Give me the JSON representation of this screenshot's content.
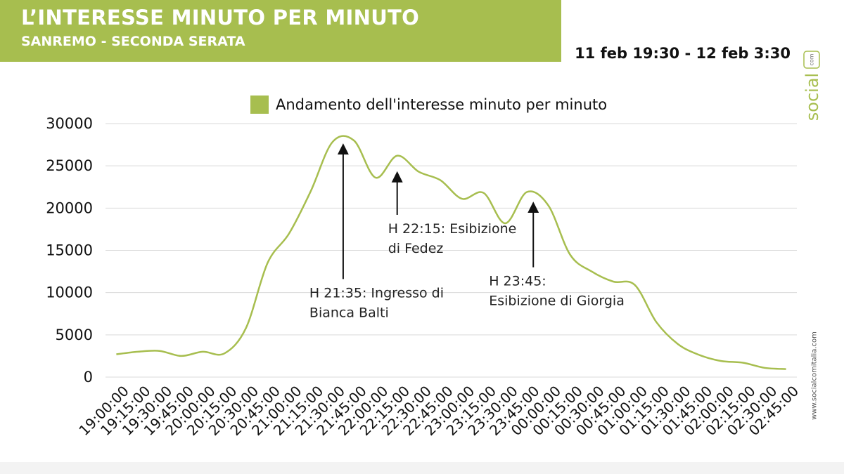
{
  "header": {
    "title": "L’INTERESSE MINUTO PER MINUTO",
    "subtitle": "SANREMO - SECONDA SERATA",
    "date_range": "11 feb 19:30 - 12 feb 3:30"
  },
  "brand": {
    "logo_text": "social",
    "logo_suffix": "com",
    "url": "www.socialcomitalia.com",
    "accent_color": "#a7be4f"
  },
  "chart_data": {
    "type": "line",
    "title": "",
    "xlabel": "",
    "ylabel": "",
    "ylim": [
      0,
      30000
    ],
    "yticks": [
      0,
      5000,
      10000,
      15000,
      20000,
      25000,
      30000
    ],
    "grid": true,
    "legend_position": "top-center",
    "categories": [
      "19:00:00",
      "19:15:00",
      "19:30:00",
      "19:45:00",
      "20:00:00",
      "20:15:00",
      "20:30:00",
      "20:45:00",
      "21:00:00",
      "21:15:00",
      "21:30:00",
      "21:45:00",
      "22:00:00",
      "22:15:00",
      "22:30:00",
      "22:45:00",
      "23:00:00",
      "23:15:00",
      "23:30:00",
      "23:45:00",
      "00:00:00",
      "00:15:00",
      "00:30:00",
      "00:45:00",
      "01:00:00",
      "01:15:00",
      "01:30:00",
      "01:45:00",
      "02:00:00",
      "02:15:00",
      "02:30:00",
      "02:45:00"
    ],
    "series": [
      {
        "name": "Andamento dell'interesse minuto per minuto",
        "color": "#a7be4f",
        "values": [
          2700,
          3000,
          3100,
          2500,
          3000,
          2800,
          5800,
          13500,
          17000,
          22000,
          27800,
          28000,
          23600,
          26200,
          24300,
          23300,
          21100,
          21800,
          18200,
          21900,
          20300,
          14500,
          12500,
          11300,
          10900,
          6500,
          3900,
          2600,
          1900,
          1700,
          1100,
          950
        ]
      }
    ],
    "annotations": [
      {
        "id": "bianca",
        "lines": [
          "H 21:35: Ingresso di",
          "Bianca Balti"
        ],
        "x": 10.5,
        "arrow_from": 11600,
        "arrow_to": 27500
      },
      {
        "id": "fedez",
        "lines": [
          "H 22:15: Esibizione",
          "di Fedez"
        ],
        "x": 13.0,
        "arrow_from": 19200,
        "arrow_to": 24200
      },
      {
        "id": "giorgia",
        "lines": [
          "H 23:45:",
          "Esibizione di Giorgia"
        ],
        "x": 19.3,
        "arrow_from": 13000,
        "arrow_to": 20600
      }
    ]
  }
}
